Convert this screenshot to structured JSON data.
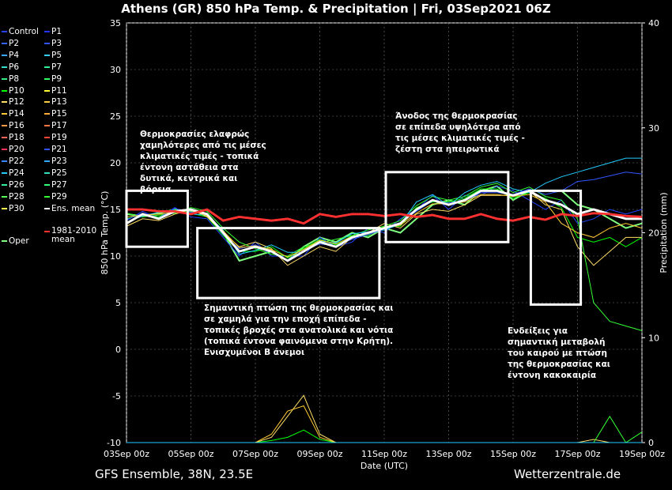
{
  "title": "Athens  (GR)  850 hPa Temp. & Precipitation | Fri, 03Sep2021 06Z",
  "footer": {
    "left": "GFS Ensemble, 38N, 23.5E",
    "right": "Wetterzentrale.de"
  },
  "annotations": [
    "Θερμοκρασίες ελαφρώς χαμηλότερες από τις μέσες κλιματικές τιμές - τοπικά έντονη αστάθεια στα δυτικά, κεντρικά και βόρεια",
    "Σημαντική πτώση της θερμοκρασίας και σε χαμηλά για την εποχή επίπεδα - τοπικές βροχές στα ανατολικά και νότια (τοπικά έντονα φαινόμενα στην Κρήτη). Ενισχυμένοι Β άνεμοι",
    "Άνοδος της θερμοκρασίας σε επίπεδα υψηλότερα από τις μέσες κλιματικές τιμές - ζέστη στα ηπειρωτικά",
    "Ενδείξεις για σημαντική μεταβολή του καιρού με πτώση της θερμοκρασίας και έντονη κακοκαιρία"
  ],
  "chart_data": {
    "type": "line",
    "title": "Athens  (GR)  850 hPa Temp. & Precipitation | Fri, 03Sep2021 06Z",
    "xlabel": "Date (UTC)",
    "ylabel": "850 hPa Temp. (°C)",
    "y2label": "Precipitation (mm)",
    "ylim": [
      -10,
      35
    ],
    "y2lim": [
      0,
      40
    ],
    "yticks": [
      "35",
      "30",
      "25",
      "20",
      "15",
      "10",
      "5",
      "0",
      "-5",
      "-10"
    ],
    "y2ticks": [
      "40",
      "30",
      "20",
      "10",
      "0"
    ],
    "xticks": [
      "03Sep 00z",
      "05Sep 00z",
      "07Sep 00z",
      "09Sep 00z",
      "11Sep 00z",
      "13Sep 00z",
      "15Sep 00z",
      "17Sep 00z",
      "19Sep 00z"
    ],
    "x_days": [
      0,
      0.5,
      1,
      1.5,
      2,
      2.5,
      3,
      3.5,
      4,
      4.5,
      5,
      5.5,
      6,
      6.5,
      7,
      7.5,
      8,
      8.5,
      9,
      9.5,
      10,
      10.5,
      11,
      11.5,
      12,
      12.5,
      13,
      13.5,
      14,
      14.5,
      15,
      15.5,
      16
    ],
    "grid": true,
    "legend_position": "left-outside",
    "series": [
      {
        "name": "Ens. mean",
        "color": "#ffffff",
        "values": [
          13.5,
          14.5,
          14,
          14.8,
          15,
          14.5,
          12.5,
          10.5,
          11,
          10.5,
          9.5,
          10.5,
          11.5,
          11,
          12,
          12.5,
          13,
          13.5,
          15,
          16,
          15.5,
          16,
          17,
          17,
          16.5,
          17,
          16,
          15.5,
          14.5,
          15,
          14.5,
          14,
          14
        ]
      },
      {
        "name": "1981-2010 mean",
        "color": "#ff3030",
        "values": [
          15,
          15,
          14.8,
          14.8,
          14.5,
          15,
          13.8,
          14.2,
          14,
          13.8,
          14,
          13.5,
          14.5,
          14.2,
          14.5,
          14.5,
          14.3,
          14.5,
          14.2,
          14.4,
          14,
          14,
          14.5,
          14,
          13.8,
          14.2,
          13.9,
          14.5,
          14.3,
          14.6,
          14.5,
          14.3,
          14.2
        ]
      },
      {
        "name": "Oper",
        "color": "#80ff80",
        "values": [
          14.5,
          14.3,
          14.6,
          15,
          14.8,
          14.5,
          12.5,
          9.5,
          10,
          10.5,
          9.5,
          11,
          12,
          11.5,
          12.5,
          12,
          13,
          12.5,
          14,
          15.5,
          16,
          15.5,
          17,
          17.5,
          16,
          17,
          17,
          17,
          15.5,
          15,
          14,
          13,
          13.5
        ]
      },
      {
        "name": "Control",
        "color": "#2244ff",
        "values": [
          13.8,
          14.8,
          14,
          15.2,
          14.2,
          14,
          12,
          10,
          11.5,
          10,
          10,
          10,
          12,
          11,
          11.5,
          13,
          12.5,
          14,
          15,
          16.5,
          15,
          16.5,
          16.5,
          17.5,
          17,
          16,
          15,
          16,
          13.5,
          14,
          15,
          14.5,
          15
        ]
      },
      {
        "name": "P10",
        "color": "#00ff00",
        "values": [
          14,
          14.5,
          14.2,
          15,
          14.6,
          14.2,
          12.2,
          10.5,
          10.5,
          11,
          9.8,
          10.8,
          11.8,
          11.2,
          12.2,
          12.2,
          13.2,
          13.2,
          15.2,
          15.8,
          15.8,
          16.2,
          17.2,
          17.2,
          16.2,
          16.8,
          16.2,
          15.2,
          12,
          11.5,
          12,
          11,
          12
        ]
      },
      {
        "name": "P12",
        "color": "#ffdd66",
        "values": [
          13.2,
          14,
          13.8,
          14.5,
          15,
          14.2,
          12.5,
          11,
          11.5,
          10.8,
          9,
          10,
          11,
          10.5,
          12,
          12.5,
          13.5,
          13,
          14.5,
          15,
          14.8,
          15.5,
          16.5,
          16.5,
          16.5,
          17,
          15.5,
          15,
          11,
          9,
          10.5,
          12,
          12
        ]
      },
      {
        "name": "P29",
        "color": "#33ff33",
        "values": [
          14.6,
          14.2,
          14.4,
          14.6,
          15.2,
          14.8,
          13,
          11.5,
          10.8,
          10.2,
          10,
          11,
          11.4,
          11.8,
          12.2,
          12.8,
          13.2,
          13.8,
          15.4,
          16.4,
          16,
          16.4,
          17.4,
          17.8,
          16.8,
          17.4,
          16.4,
          16,
          14,
          5,
          3,
          2.5,
          2
        ]
      },
      {
        "name": "P24",
        "color": "#22ccff",
        "values": [
          13.6,
          14.3,
          14.7,
          14.9,
          14.5,
          14.4,
          12.8,
          10.2,
          10.6,
          11.2,
          10.4,
          10.4,
          11.6,
          11.4,
          12.4,
          12.6,
          12.8,
          13.4,
          15.8,
          16.6,
          15.4,
          16.8,
          17.6,
          18,
          17.2,
          16.8,
          17.8,
          18.5,
          19,
          19.5,
          20,
          20.5,
          20.5
        ]
      },
      {
        "name": "P21",
        "color": "#3355ff",
        "values": [
          13.9,
          14.6,
          14.1,
          15.1,
          14.7,
          14.6,
          12.3,
          10.8,
          11.2,
          10.4,
          9.6,
          10.6,
          11.3,
          11.1,
          11.8,
          12.3,
          12.9,
          13.6,
          14.8,
          15.9,
          15.7,
          15.9,
          16.8,
          16.8,
          16.6,
          17.2,
          16.6,
          17,
          18,
          18.2,
          18.6,
          19,
          18.8
        ]
      },
      {
        "name": "P14",
        "color": "#ffcc33",
        "values": [
          14.2,
          14.4,
          14.5,
          14.7,
          14.9,
          14.3,
          12.7,
          10.9,
          11.1,
          10.7,
          9.9,
          10.7,
          11.7,
          11.3,
          12.1,
          12.4,
          13.1,
          13.3,
          14.6,
          15.6,
          15.6,
          15.8,
          16.6,
          16.6,
          16.4,
          16.6,
          15.8,
          13.5,
          12.5,
          12,
          13,
          13.5,
          13
        ]
      }
    ],
    "precip_series": [
      {
        "name": "P10",
        "color": "#00ff00",
        "values": [
          0,
          0,
          0,
          0,
          0,
          0,
          0,
          0,
          0,
          0.2,
          0.5,
          1.2,
          0.3,
          0,
          0,
          0,
          0,
          0,
          0,
          0,
          0,
          0,
          0,
          0,
          0,
          0,
          0,
          0,
          0,
          0,
          0,
          0,
          0
        ]
      },
      {
        "name": "P12",
        "color": "#ffdd66",
        "values": [
          0,
          0,
          0,
          0,
          0,
          0,
          0,
          0,
          0,
          0.5,
          2.5,
          4.5,
          0.8,
          0,
          0,
          0,
          0,
          0,
          0,
          0,
          0,
          0,
          0,
          0,
          0,
          0,
          0,
          0,
          0,
          0.3,
          0,
          0,
          0
        ]
      },
      {
        "name": "P14",
        "color": "#ffcc33",
        "values": [
          0,
          0,
          0,
          0,
          0,
          0,
          0,
          0,
          0,
          0.8,
          3,
          3.5,
          0.5,
          0,
          0,
          0,
          0,
          0,
          0,
          0,
          0,
          0,
          0,
          0,
          0,
          0,
          0,
          0,
          0,
          0,
          0,
          0,
          0
        ]
      },
      {
        "name": "P29",
        "color": "#33ff33",
        "values": [
          0,
          0,
          0,
          0,
          0,
          0,
          0,
          0,
          0,
          0,
          0,
          0,
          0,
          0,
          0,
          0,
          0,
          0,
          0,
          0,
          0,
          0,
          0,
          0,
          0,
          0,
          0,
          0,
          0,
          0,
          2.5,
          0,
          1
        ]
      },
      {
        "name": "P24",
        "color": "#22ccff",
        "values": [
          0,
          0,
          0,
          0,
          0,
          0,
          0,
          0,
          0,
          0,
          0,
          0,
          0,
          0,
          0,
          0,
          0,
          0,
          0,
          0,
          0,
          0,
          0,
          0,
          0,
          0,
          0,
          0,
          0,
          0,
          0,
          0,
          0
        ]
      }
    ]
  },
  "legend": [
    {
      "name": "Control",
      "color": "#2244ff"
    },
    {
      "name": "P1",
      "color": "#2233ff"
    },
    {
      "name": "P2",
      "color": "#3366ff"
    },
    {
      "name": "P3",
      "color": "#3355ff"
    },
    {
      "name": "P4",
      "color": "#33aaff"
    },
    {
      "name": "P5",
      "color": "#33ccee"
    },
    {
      "name": "P6",
      "color": "#33ddcc"
    },
    {
      "name": "P7",
      "color": "#33ee99"
    },
    {
      "name": "P8",
      "color": "#33ee88"
    },
    {
      "name": "P9",
      "color": "#33ff66"
    },
    {
      "name": "P10",
      "color": "#00ff00"
    },
    {
      "name": "P11",
      "color": "#ffff33"
    },
    {
      "name": "P12",
      "color": "#ffdd66"
    },
    {
      "name": "P13",
      "color": "#ffcc44"
    },
    {
      "name": "P14",
      "color": "#ffcc33"
    },
    {
      "name": "P15",
      "color": "#ffaa33"
    },
    {
      "name": "P16",
      "color": "#ff9944"
    },
    {
      "name": "P17",
      "color": "#ff7744"
    },
    {
      "name": "P18",
      "color": "#ff6655"
    },
    {
      "name": "P19",
      "color": "#ff4433"
    },
    {
      "name": "P20",
      "color": "#ff3355"
    },
    {
      "name": "P21",
      "color": "#3355ff"
    },
    {
      "name": "P22",
      "color": "#3388ff"
    },
    {
      "name": "P23",
      "color": "#33aaff"
    },
    {
      "name": "P24",
      "color": "#22ccff"
    },
    {
      "name": "P25",
      "color": "#33ddbb"
    },
    {
      "name": "P26",
      "color": "#33ee99"
    },
    {
      "name": "P27",
      "color": "#33ff77"
    },
    {
      "name": "P28",
      "color": "#55ff55"
    },
    {
      "name": "P29",
      "color": "#33ff33"
    },
    {
      "name": "P30",
      "color": "#ffff44"
    },
    {
      "name": "Ens. mean",
      "color": "#ffffff"
    },
    {
      "name": "Oper",
      "color": "#80ff80"
    },
    {
      "name": "1981-2010 mean",
      "color": "#ff3030"
    }
  ],
  "highlight_boxes": [
    {
      "x": [
        0,
        1.9
      ],
      "y": [
        11,
        17
      ]
    },
    {
      "x": [
        2.2,
        7.85
      ],
      "y": [
        5.5,
        13
      ]
    },
    {
      "x": [
        8.05,
        11.85
      ],
      "y": [
        11.5,
        19
      ]
    },
    {
      "x": [
        12.55,
        14.1
      ],
      "y": [
        4.8,
        17
      ]
    }
  ]
}
